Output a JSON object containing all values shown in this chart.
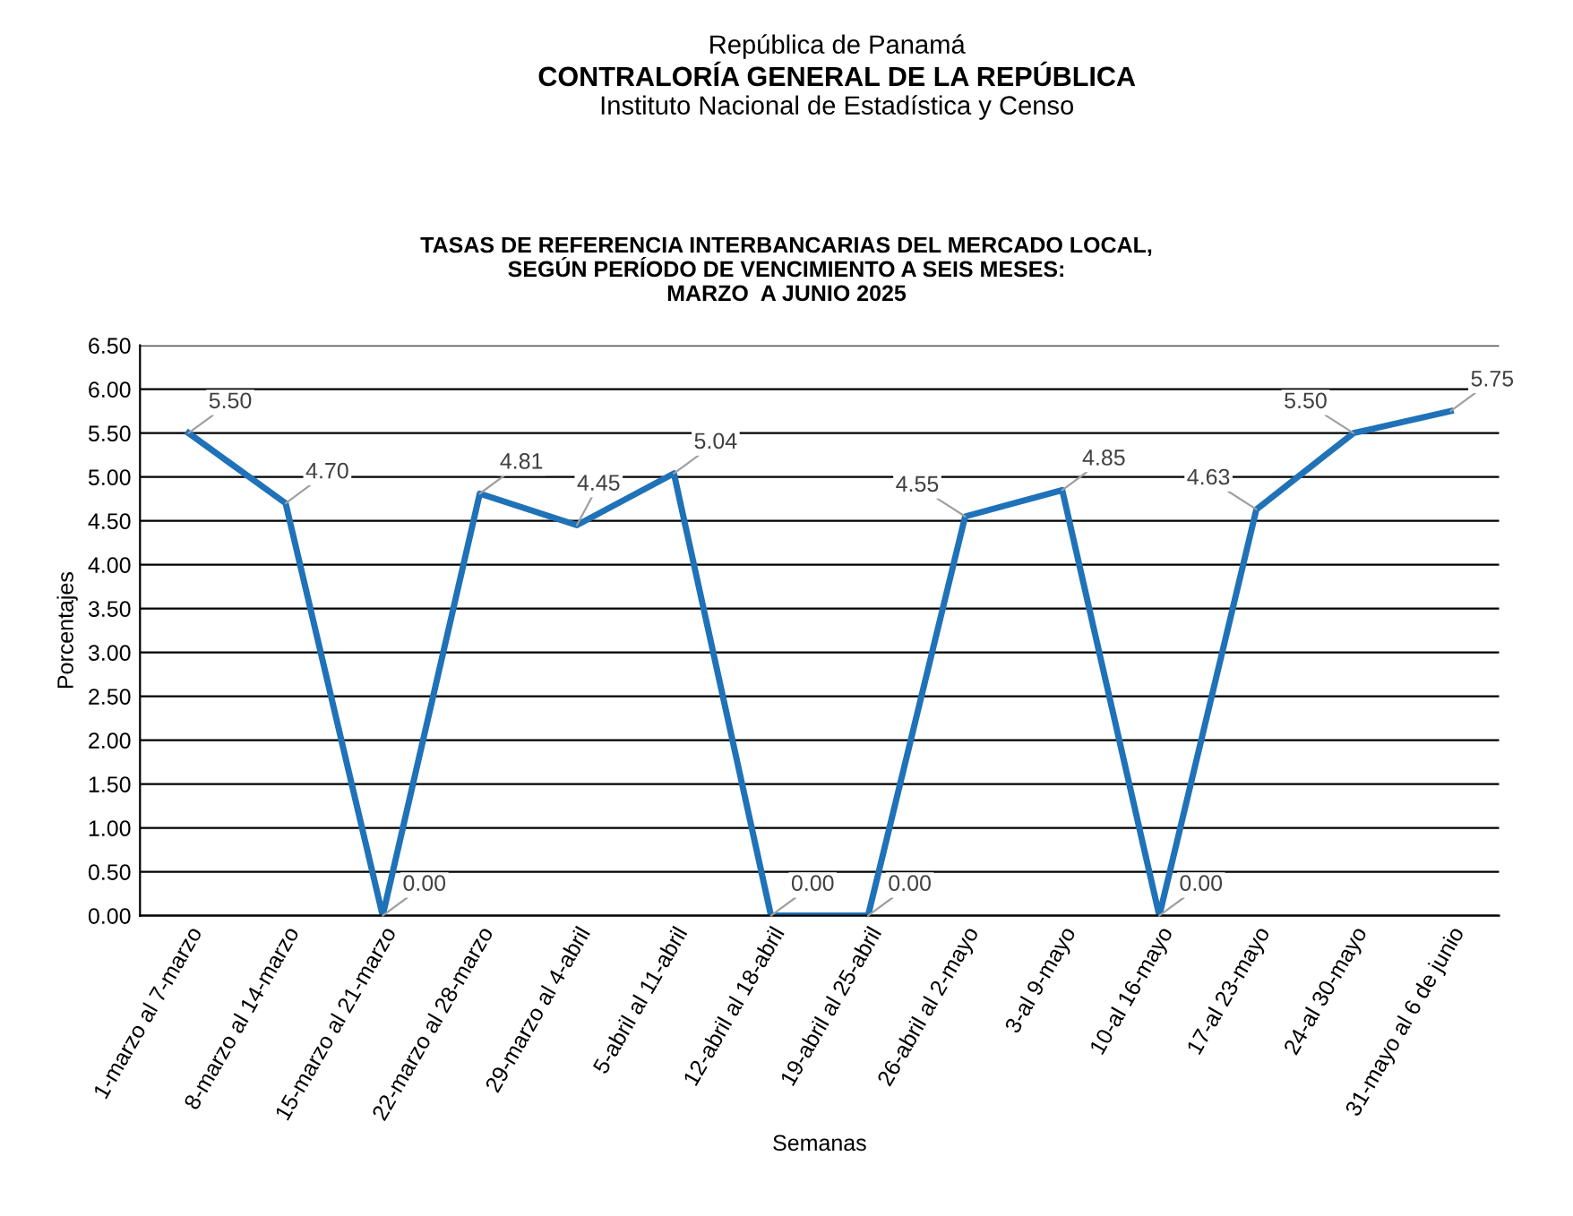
{
  "chart_data": {
    "type": "line",
    "title": "TASAS DE REFERENCIA INTERBANCARIAS DEL MERCADO LOCAL,\nSEGÚN PERÍODO DE VENCIMIENTO A SEIS MESES:\nMARZO  A JUNIO 2025",
    "annotations": [
      "República de Panamá",
      "CONTRALORÍA GENERAL DE LA REPÚBLICA",
      "Instituto Nacional de Estadística y Censo"
    ],
    "xlabel": "Semanas",
    "ylabel": "Porcentajes",
    "categories": [
      "1-marzo al 7-marzo",
      "8-marzo al 14-marzo",
      "15-marzo al 21-marzo",
      "22-marzo al 28-marzo",
      "29-marzo al 4-abril",
      "5-abril al 11-abril",
      "12-abril al 18-abril",
      "19-abril al 25-abril",
      "26-abril al 2-mayo",
      "3-al 9-mayo",
      "10-al 16-mayo",
      "17-al 23-mayo",
      "24-al 30-mayo",
      "31-mayo al 6 de junio"
    ],
    "series": [
      {
        "color": "#1f72b8",
        "values": [
          5.5,
          4.7,
          0,
          4.81,
          4.45,
          5.04,
          0,
          0,
          4.55,
          4.85,
          0,
          4.63,
          5.5,
          5.75
        ],
        "value_labels": [
          "5.50",
          "4.70",
          "0.00",
          "4.81",
          "4.45",
          "5.04",
          "0.00",
          "0.00",
          "4.55",
          "4.85",
          "0.00",
          "4.63",
          "5.50",
          "5.75"
        ]
      }
    ],
    "ylim": [
      0,
      6.5
    ],
    "yticks": [
      {
        "value": 0,
        "label": "0.00"
      },
      {
        "value": 0.5,
        "label": "0.50"
      },
      {
        "value": 1,
        "label": "1.00"
      },
      {
        "value": 1.5,
        "label": "1.50"
      },
      {
        "value": 2,
        "label": "2.00"
      },
      {
        "value": 2.5,
        "label": "2.50"
      },
      {
        "value": 3,
        "label": "3.00"
      },
      {
        "value": 3.5,
        "label": "3.50"
      },
      {
        "value": 4,
        "label": "4.00"
      },
      {
        "value": 4.5,
        "label": "4.50"
      },
      {
        "value": 5,
        "label": "5.00"
      },
      {
        "value": 5.5,
        "label": "5.50"
      },
      {
        "value": 6,
        "label": "6.00"
      },
      {
        "value": 6.5,
        "label": "6.50"
      }
    ],
    "grid": "y",
    "marker": "none",
    "line_style": "solid",
    "legend": false
  }
}
